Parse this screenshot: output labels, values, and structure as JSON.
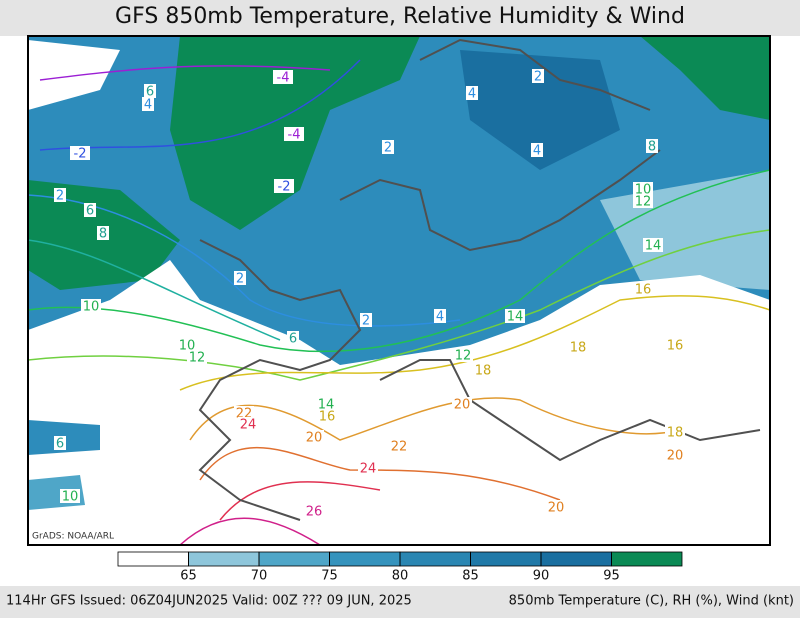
{
  "title": "GFS 850mb Temperature, Relative Humidity & Wind",
  "credit": "GrADS: NOAA/ARL",
  "colorbar": {
    "ticks": [
      65,
      70,
      75,
      80,
      85,
      90,
      95
    ],
    "colors": [
      "#ffffff",
      "#8ec6db",
      "#4fa6c8",
      "#3593bd",
      "#2a86b2",
      "#2079a8",
      "#1a6fa0",
      "#0b8a55"
    ]
  },
  "contour_labels": [
    -4,
    -4,
    6,
    4,
    -2,
    -2,
    2,
    6,
    8,
    2,
    4,
    2,
    4,
    8,
    10,
    12,
    14,
    2,
    10,
    6,
    2,
    4,
    14,
    16,
    10,
    12,
    12,
    18,
    16,
    18,
    14,
    22,
    24,
    16,
    20,
    20,
    22,
    6,
    24,
    18,
    20,
    10,
    26,
    20
  ],
  "footer": {
    "left": "114Hr GFS Issued: 06Z04JUN2025 Valid: 00Z ??? 09 JUN, 2025",
    "right": "850mb Temperature (C), RH (%), Wind (knt)"
  }
}
